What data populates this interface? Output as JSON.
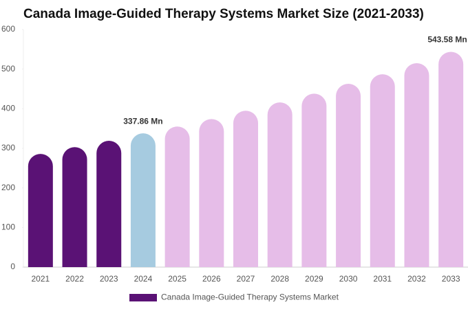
{
  "chart_data": {
    "type": "bar",
    "title": "Canada Image-Guided Therapy Systems Market Size (2021-2033)",
    "categories": [
      "2021",
      "2022",
      "2023",
      "2024",
      "2025",
      "2026",
      "2027",
      "2028",
      "2029",
      "2030",
      "2031",
      "2032",
      "2033"
    ],
    "series": [
      {
        "name": "Canada Image-Guided Therapy Systems Market",
        "color": "#5a1275",
        "values": [
          286,
          303,
          319,
          337.86,
          355,
          374,
          395,
          416,
          438,
          463,
          487,
          515,
          543.58
        ],
        "value_labels": [
          null,
          null,
          null,
          "337.86 Mn",
          null,
          null,
          null,
          null,
          null,
          null,
          null,
          null,
          "543.58 Mn"
        ],
        "bar_colors": [
          "#5a1275",
          "#5a1275",
          "#5a1275",
          "#a6cbe0",
          "#e6bde8",
          "#e6bde8",
          "#e6bde8",
          "#e6bde8",
          "#e6bde8",
          "#e6bde8",
          "#e6bde8",
          "#e6bde8",
          "#e6bde8"
        ]
      }
    ],
    "ylim": [
      0,
      600
    ],
    "yticks": [
      0,
      100,
      200,
      300,
      400,
      500,
      600
    ],
    "grid": false,
    "legend": "bottom"
  }
}
